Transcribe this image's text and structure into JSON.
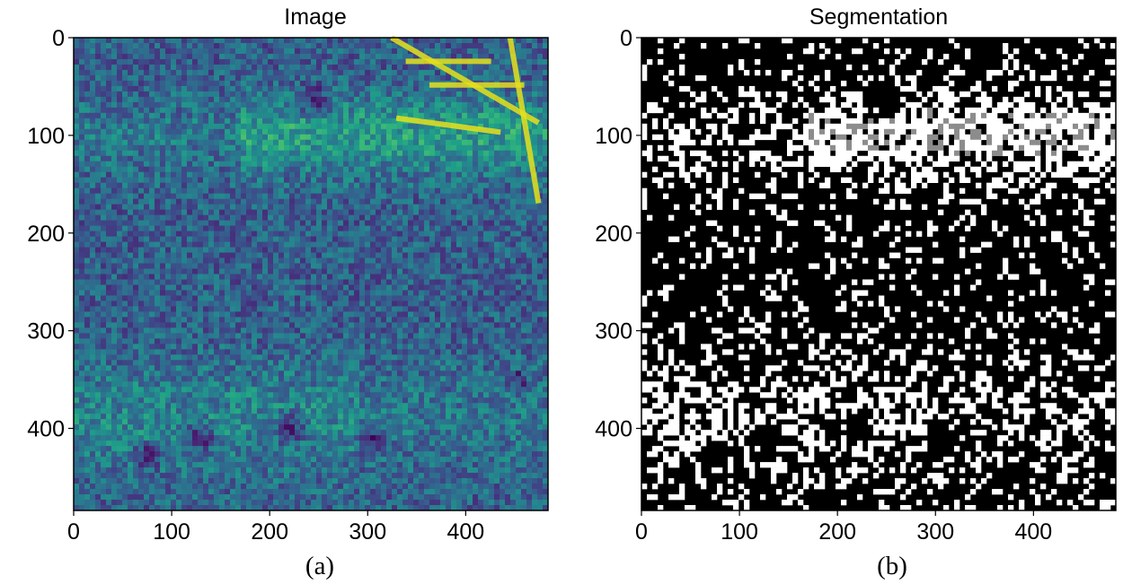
{
  "panels": [
    {
      "title": "Image",
      "caption": "(a)",
      "colormap": "viridis",
      "x_ticks": [
        "0",
        "100",
        "200",
        "300",
        "400"
      ],
      "y_ticks": [
        "0",
        "100",
        "200",
        "300",
        "400"
      ]
    },
    {
      "title": "Segmentation",
      "caption": "(b)",
      "colormap": "black/gray/white",
      "x_ticks": [
        "0",
        "100",
        "200",
        "300",
        "400"
      ],
      "y_ticks": [
        "0",
        "100",
        "200",
        "300",
        "400"
      ]
    }
  ],
  "image_extent": [
    0,
    484
  ],
  "colors": {
    "viridis_dark": "#3b2a6e",
    "viridis_mid": "#2c8a86",
    "viridis_bright": "#e6e11c",
    "seg_background": "#000000",
    "seg_class_1": "#ffffff",
    "seg_class_2": "#8c8c8c"
  }
}
